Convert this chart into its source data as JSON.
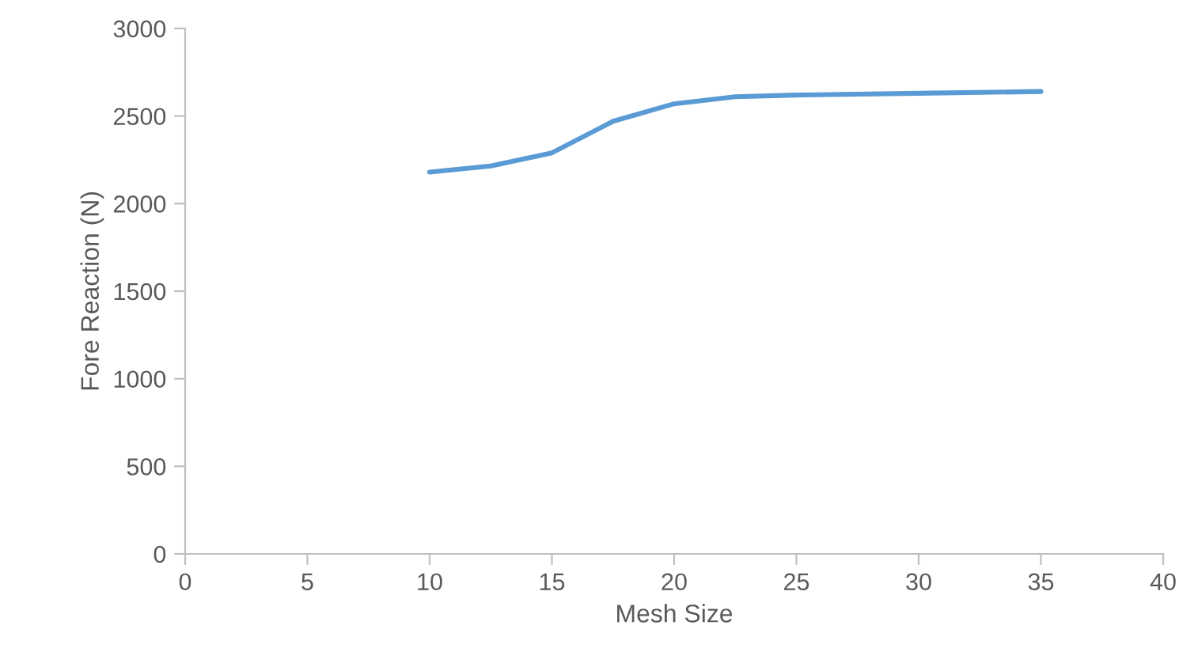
{
  "chart_data": {
    "type": "line",
    "xlabel": "Mesh Size",
    "ylabel": "Fore Reaction (N)",
    "x": [
      10,
      12.5,
      15,
      17.5,
      20,
      22.5,
      25,
      30,
      35
    ],
    "series": [
      {
        "color": "#5b9bd5",
        "values": [
          2180,
          2215,
          2290,
          2470,
          2570,
          2610,
          2620,
          2630,
          2640
        ]
      }
    ],
    "xlim": [
      0,
      40
    ],
    "xticks": [
      0,
      5,
      10,
      15,
      20,
      25,
      30,
      35,
      40
    ],
    "ylim": [
      0,
      3000
    ],
    "yticks": [
      0,
      500,
      1000,
      1500,
      2000,
      2500,
      3000
    ],
    "grid": false,
    "legend": false,
    "marker": "none",
    "line_style": "solid"
  }
}
